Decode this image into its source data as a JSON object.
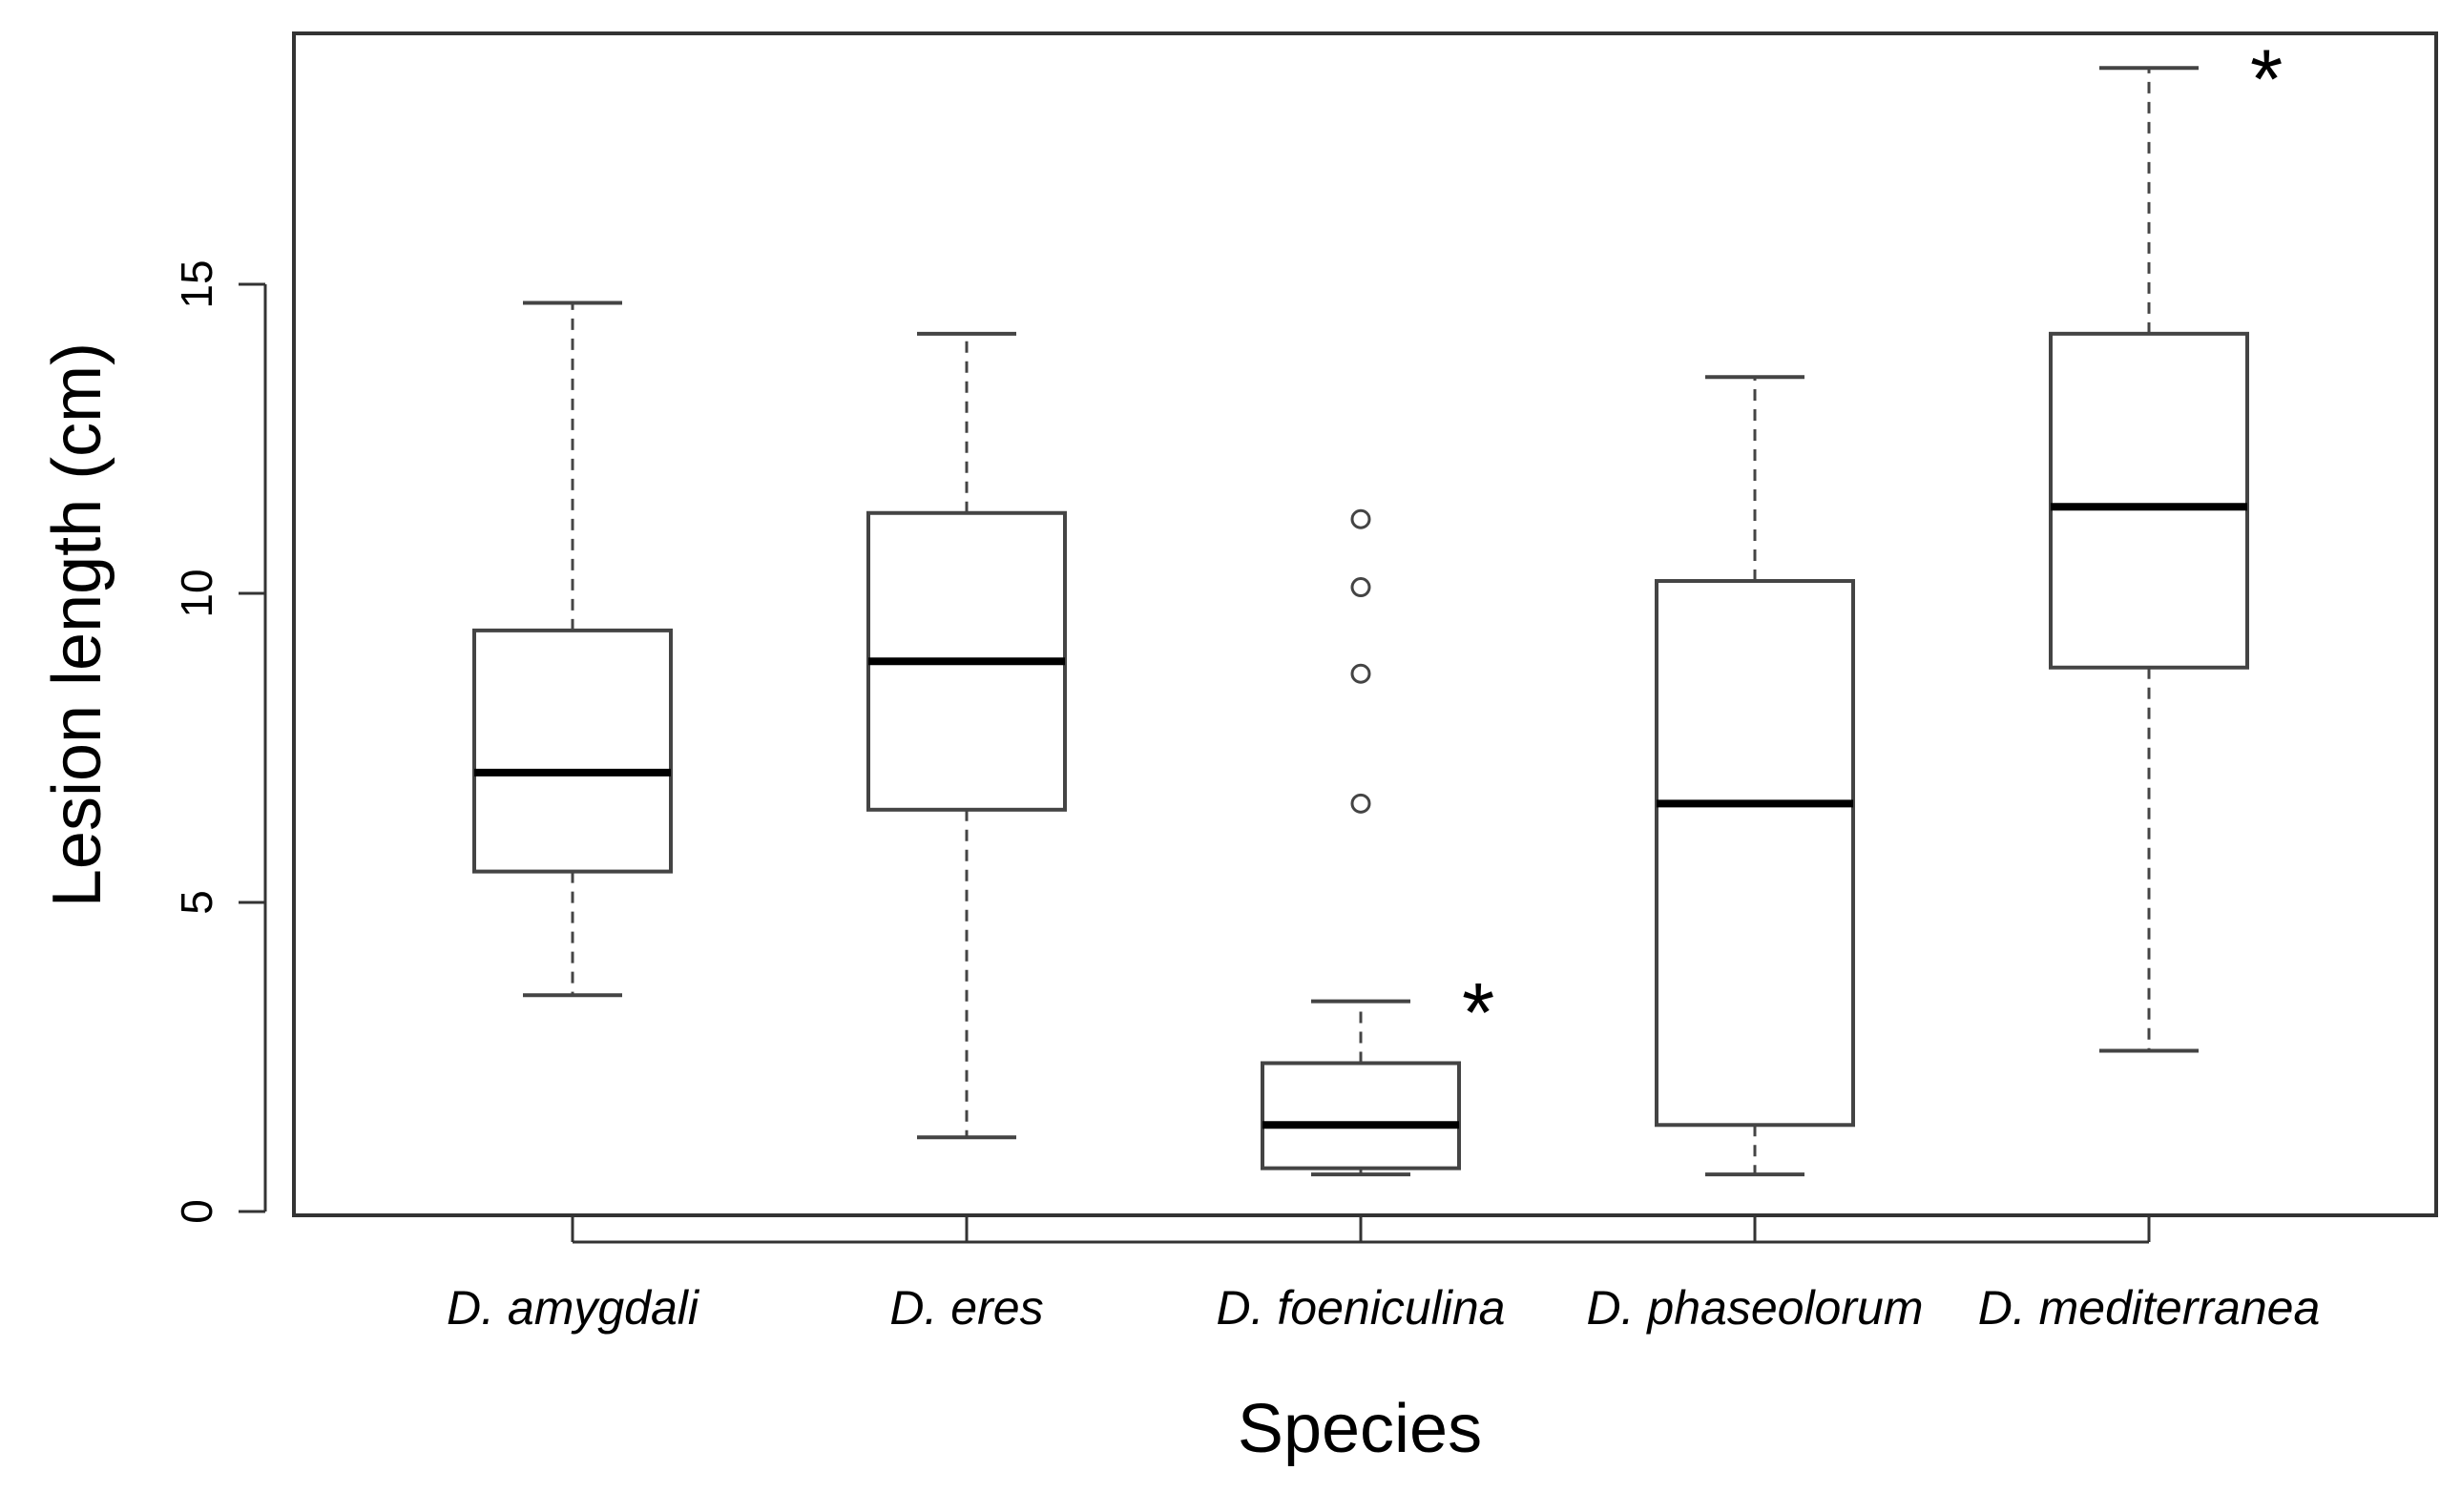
{
  "chart_data": {
    "type": "boxplot",
    "title": "",
    "xlabel": "Species",
    "ylabel": "Lesion length (cm)",
    "ylim": [
      0,
      19.0
    ],
    "yticks": [
      0,
      5,
      10,
      15
    ],
    "ytick_labels": [
      "0",
      "5",
      "10",
      "15"
    ],
    "grid": false,
    "legend": "none",
    "categories": [
      "D. amygdali",
      "D. eres",
      "D. foeniculina",
      "D. phaseolorum",
      "D. mediterranea"
    ],
    "boxes": [
      {
        "category": "D. amygdali",
        "whisker_low": 3.5,
        "q1": 5.5,
        "median": 7.1,
        "q3": 9.4,
        "whisker_high": 14.7,
        "outliers": [],
        "significance": ""
      },
      {
        "category": "D. eres",
        "whisker_low": 1.2,
        "q1": 6.5,
        "median": 8.9,
        "q3": 11.3,
        "whisker_high": 14.2,
        "outliers": [],
        "significance": ""
      },
      {
        "category": "D. foeniculina",
        "whisker_low": 0.6,
        "q1": 0.7,
        "median": 1.4,
        "q3": 2.4,
        "whisker_high": 3.4,
        "outliers": [
          6.6,
          8.7,
          10.1,
          11.2
        ],
        "significance": "*"
      },
      {
        "category": "D. phaseolorum",
        "whisker_low": 0.6,
        "q1": 1.4,
        "median": 6.6,
        "q3": 10.2,
        "whisker_high": 13.5,
        "outliers": [],
        "significance": ""
      },
      {
        "category": "D. mediterranea",
        "whisker_low": 2.6,
        "q1": 8.8,
        "median": 11.4,
        "q3": 14.2,
        "whisker_high": 18.5,
        "outliers": [],
        "significance": "*"
      }
    ],
    "colors": {
      "box_stroke": "#444444",
      "median": "#000000",
      "axis": "#333333",
      "background": "#ffffff"
    }
  }
}
